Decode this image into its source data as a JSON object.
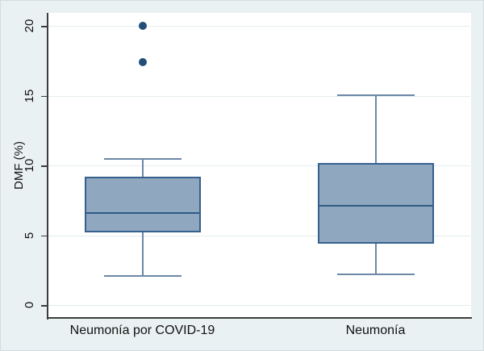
{
  "chart_data": {
    "type": "box",
    "title": "",
    "ylabel": "DMF (%)",
    "xlabel": "",
    "yticks": [
      0,
      5,
      10,
      15,
      20
    ],
    "ylim": [
      0,
      20.9
    ],
    "grid": "horizontal",
    "legend": "none",
    "categories": [
      "Neumonía por COVID-19",
      "Neumonía"
    ],
    "series": [
      {
        "category": "Neumonía por COVID-19",
        "whisker_low": 2.1,
        "q1": 5.2,
        "median": 6.6,
        "q3": 9.2,
        "whisker_high": 10.5,
        "outliers": [
          17.4,
          20.0
        ]
      },
      {
        "category": "Neumonía",
        "whisker_low": 2.2,
        "q1": 4.4,
        "median": 7.1,
        "q3": 10.2,
        "whisker_high": 15.1,
        "outliers": []
      }
    ],
    "colors": {
      "background": "#eaf1f2",
      "plot_background": "#ffffff",
      "gridline": "#e4edef",
      "axis": "#3c3c3c",
      "box_fill": "#8fa7bf",
      "box_border": "#36618e",
      "median": "#2f5b87",
      "whisker": "#6c88a6",
      "outlier": "#1f4e79",
      "text": "#111111"
    }
  }
}
